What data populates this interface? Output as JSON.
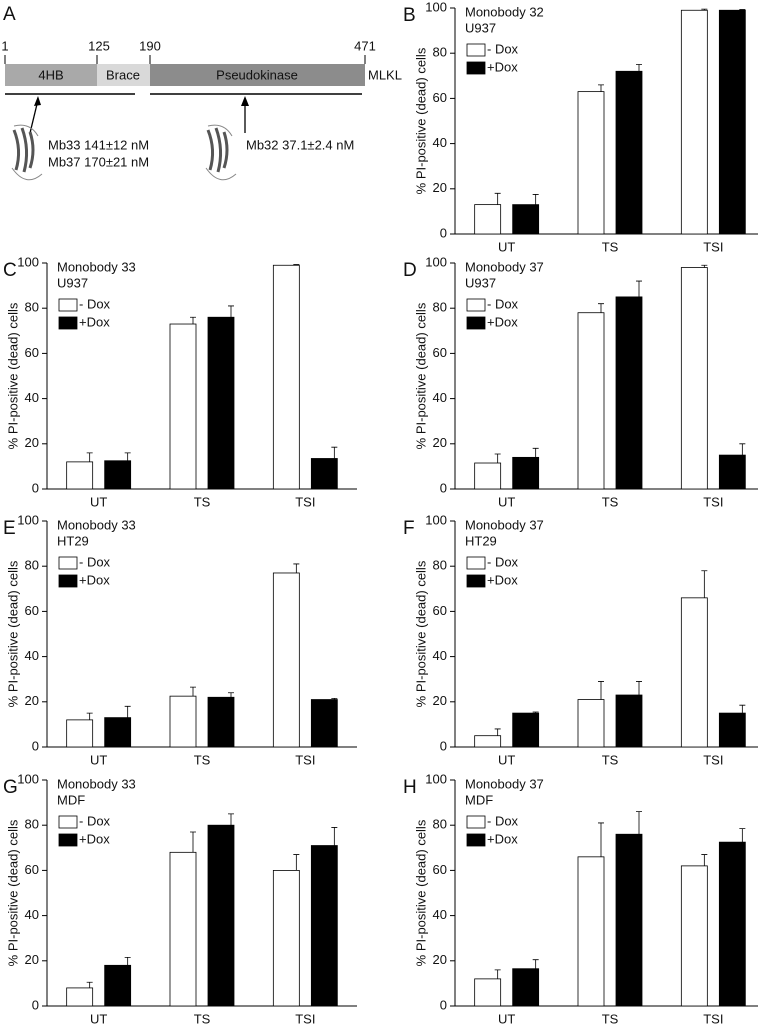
{
  "diagram": {
    "label": "A",
    "positions": [
      "1",
      "125",
      "190",
      "471"
    ],
    "domains": [
      "4HB",
      "Brace",
      "Pseudokinase"
    ],
    "protein": "MLKL",
    "binders": [
      "Mb33 141±12 nM",
      "Mb37 170±21 nM",
      "Mb32 37.1±2.4 nM"
    ]
  },
  "chart_data": [
    {
      "type": "bar",
      "label": "B",
      "title": "Monobody 32",
      "subtitle": "U937",
      "ylabel": "% PI-positive (dead) cells",
      "categories": [
        "UT",
        "TS",
        "TSI"
      ],
      "ylim": [
        0,
        100
      ],
      "yticks": [
        0,
        20,
        40,
        60,
        80,
        100
      ],
      "series": [
        {
          "name": "- Dox",
          "color": "#ffffff",
          "values": [
            13,
            63,
            99
          ],
          "errors": [
            5,
            3,
            0.5
          ]
        },
        {
          "name": "+Dox",
          "color": "#000000",
          "values": [
            13,
            72,
            99
          ],
          "errors": [
            4.5,
            3,
            0.3
          ]
        }
      ]
    },
    {
      "type": "bar",
      "label": "C",
      "title": "Monobody 33",
      "subtitle": "U937",
      "ylabel": "% PI-positive (dead) cells",
      "categories": [
        "UT",
        "TS",
        "TSI"
      ],
      "ylim": [
        0,
        100
      ],
      "yticks": [
        0,
        20,
        40,
        60,
        80,
        100
      ],
      "series": [
        {
          "name": "- Dox",
          "color": "#ffffff",
          "values": [
            12,
            73,
            99
          ],
          "errors": [
            4,
            3,
            0.3
          ]
        },
        {
          "name": "+Dox",
          "color": "#000000",
          "values": [
            12.5,
            76,
            13.5
          ],
          "errors": [
            3.5,
            5,
            5
          ]
        }
      ]
    },
    {
      "type": "bar",
      "label": "D",
      "title": "Monobody 37",
      "subtitle": "U937",
      "ylabel": "% PI-positive (dead) cells",
      "categories": [
        "UT",
        "TS",
        "TSI"
      ],
      "ylim": [
        0,
        100
      ],
      "yticks": [
        0,
        20,
        40,
        60,
        80,
        100
      ],
      "series": [
        {
          "name": "- Dox",
          "color": "#ffffff",
          "values": [
            11.5,
            78,
            98
          ],
          "errors": [
            4,
            4,
            1
          ]
        },
        {
          "name": "+Dox",
          "color": "#000000",
          "values": [
            14,
            85,
            15
          ],
          "errors": [
            4,
            7,
            5
          ]
        }
      ]
    },
    {
      "type": "bar",
      "label": "E",
      "title": "Monobody 33",
      "subtitle": "HT29",
      "ylabel": "% PI-positive (dead) cells",
      "categories": [
        "UT",
        "TS",
        "TSI"
      ],
      "ylim": [
        0,
        100
      ],
      "yticks": [
        0,
        20,
        40,
        60,
        80,
        100
      ],
      "series": [
        {
          "name": "- Dox",
          "color": "#ffffff",
          "values": [
            12,
            22.5,
            77
          ],
          "errors": [
            3,
            4,
            4
          ]
        },
        {
          "name": "+Dox",
          "color": "#000000",
          "values": [
            13,
            22,
            21
          ],
          "errors": [
            5,
            2,
            0.5
          ]
        }
      ]
    },
    {
      "type": "bar",
      "label": "F",
      "title": "Monobody 37",
      "subtitle": "HT29",
      "ylabel": "% PI-positive (dead) cells",
      "categories": [
        "UT",
        "TS",
        "TSI"
      ],
      "ylim": [
        0,
        100
      ],
      "yticks": [
        0,
        20,
        40,
        60,
        80,
        100
      ],
      "series": [
        {
          "name": "- Dox",
          "color": "#ffffff",
          "values": [
            5,
            21,
            66
          ],
          "errors": [
            3,
            8,
            12
          ]
        },
        {
          "name": "+Dox",
          "color": "#000000",
          "values": [
            15,
            23,
            15
          ],
          "errors": [
            0.5,
            6,
            3.5
          ]
        }
      ]
    },
    {
      "type": "bar",
      "label": "G",
      "title": "Monobody 33",
      "subtitle": "MDF",
      "ylabel": "% PI-positive (dead) cells",
      "categories": [
        "UT",
        "TS",
        "TSI"
      ],
      "ylim": [
        0,
        100
      ],
      "yticks": [
        0,
        20,
        40,
        60,
        80,
        100
      ],
      "series": [
        {
          "name": "- Dox",
          "color": "#ffffff",
          "values": [
            8,
            68,
            60
          ],
          "errors": [
            2.5,
            9,
            7
          ]
        },
        {
          "name": "+Dox",
          "color": "#000000",
          "values": [
            18,
            80,
            71
          ],
          "errors": [
            3.5,
            5,
            8
          ]
        }
      ]
    },
    {
      "type": "bar",
      "label": "H",
      "title": "Monobody 37",
      "subtitle": "MDF",
      "ylabel": "% PI-positive (dead) cells",
      "categories": [
        "UT",
        "TS",
        "TSI"
      ],
      "ylim": [
        0,
        100
      ],
      "yticks": [
        0,
        20,
        40,
        60,
        80,
        100
      ],
      "series": [
        {
          "name": "- Dox",
          "color": "#ffffff",
          "values": [
            12,
            66,
            62
          ],
          "errors": [
            4,
            15,
            5
          ]
        },
        {
          "name": "+Dox",
          "color": "#000000",
          "values": [
            16.5,
            76,
            72.5
          ],
          "errors": [
            4,
            10,
            6
          ]
        }
      ]
    }
  ]
}
